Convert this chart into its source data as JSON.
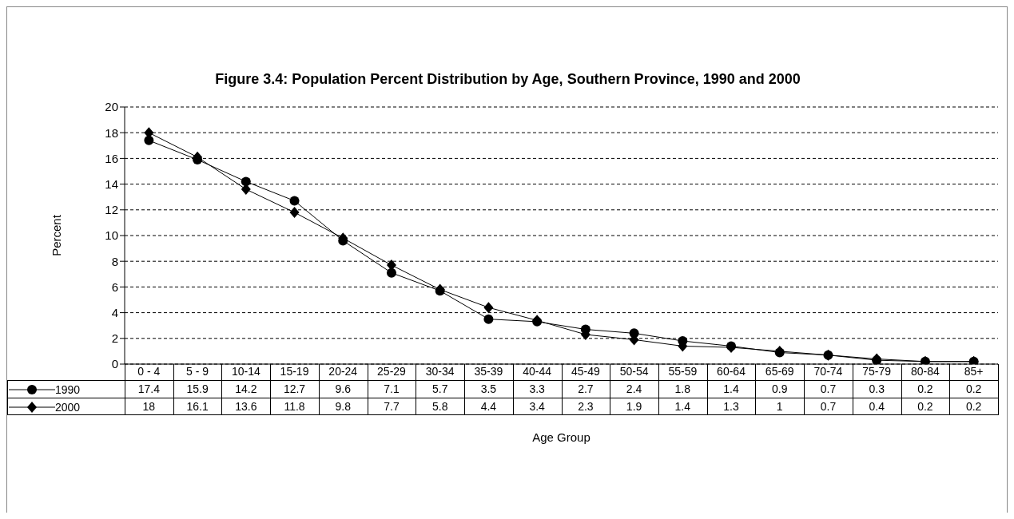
{
  "chart_data": {
    "type": "line",
    "title": "Figure 3.4: Population Percent Distribution by Age, Southern Province, 1990 and 2000",
    "xlabel": "Age Group",
    "ylabel": "Percent",
    "categories": [
      "0 - 4",
      "5 - 9",
      "10-14",
      "15-19",
      "20-24",
      "25-29",
      "30-34",
      "35-39",
      "40-44",
      "45-49",
      "50-54",
      "55-59",
      "60-64",
      "65-69",
      "70-74",
      "75-79",
      "80-84",
      "85+"
    ],
    "series": [
      {
        "name": "1990",
        "color": "#000000",
        "marker": "circle",
        "values": [
          17.4,
          15.9,
          14.2,
          12.7,
          9.6,
          7.1,
          5.7,
          3.5,
          3.3,
          2.7,
          2.4,
          1.8,
          1.4,
          0.9,
          0.7,
          0.3,
          0.2,
          0.2
        ]
      },
      {
        "name": "2000",
        "color": "#000000",
        "marker": "diamond",
        "values": [
          18,
          16.1,
          13.6,
          11.8,
          9.8,
          7.7,
          5.8,
          4.4,
          3.4,
          2.3,
          1.9,
          1.4,
          1.3,
          1,
          0.7,
          0.4,
          0.2,
          0.2
        ]
      }
    ],
    "ylim": [
      0,
      20
    ],
    "yticks": [
      0,
      2,
      4,
      6,
      8,
      10,
      12,
      14,
      16,
      18,
      20
    ],
    "grid": "y",
    "line_style": "solid",
    "legend": "bottom left",
    "data_labels": true
  }
}
